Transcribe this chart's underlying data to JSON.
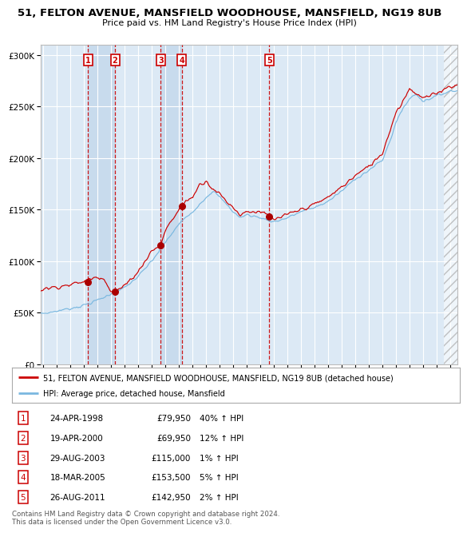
{
  "title1": "51, FELTON AVENUE, MANSFIELD WOODHOUSE, MANSFIELD, NG19 8UB",
  "title2": "Price paid vs. HM Land Registry's House Price Index (HPI)",
  "plot_bg": "#dce9f5",
  "hpi_color": "#7ab8e0",
  "price_color": "#cc0000",
  "dot_color": "#aa0000",
  "legend1": "51, FELTON AVENUE, MANSFIELD WOODHOUSE, MANSFIELD, NG19 8UB (detached house)",
  "legend2": "HPI: Average price, detached house, Mansfield",
  "footer": "Contains HM Land Registry data © Crown copyright and database right 2024.\nThis data is licensed under the Open Government Licence v3.0.",
  "sales": [
    {
      "num": 1,
      "date": "24-APR-1998",
      "price": 79950,
      "pct": "40%",
      "dir": "↑",
      "year": 1998.29
    },
    {
      "num": 2,
      "date": "19-APR-2000",
      "price": 69950,
      "pct": "12%",
      "dir": "↑",
      "year": 2000.29
    },
    {
      "num": 3,
      "date": "29-AUG-2003",
      "price": 115000,
      "pct": "1%",
      "dir": "↑",
      "year": 2003.66
    },
    {
      "num": 4,
      "date": "18-MAR-2005",
      "price": 153500,
      "pct": "5%",
      "dir": "↑",
      "year": 2005.21
    },
    {
      "num": 5,
      "date": "26-AUG-2011",
      "price": 142950,
      "pct": "2%",
      "dir": "↑",
      "year": 2011.66
    }
  ],
  "ylim": [
    0,
    310000
  ],
  "xlim_start": 1994.8,
  "xlim_end": 2025.5,
  "future_shade_start": 2024.5,
  "hpi_key_years": [
    1994.8,
    1995.5,
    1996,
    1997,
    1998,
    1999,
    2000,
    2001,
    2002,
    2003,
    2004,
    2005,
    2006,
    2007,
    2007.5,
    2008,
    2009,
    2009.5,
    2010,
    2011,
    2012,
    2013,
    2014,
    2015,
    2016,
    2017,
    2018,
    2019,
    2020,
    2020.5,
    2021,
    2021.5,
    2022,
    2022.5,
    2023,
    2023.5,
    2024,
    2024.5,
    2025
  ],
  "hpi_key_values": [
    49000,
    50000,
    51500,
    54000,
    57000,
    62000,
    68000,
    74000,
    85000,
    100000,
    118000,
    136000,
    148000,
    162000,
    168000,
    162000,
    148000,
    142000,
    145000,
    142000,
    138000,
    142000,
    148000,
    152000,
    158000,
    168000,
    180000,
    188000,
    198000,
    215000,
    235000,
    248000,
    258000,
    262000,
    255000,
    258000,
    260000,
    263000,
    265000
  ],
  "price_key_years": [
    1994.8,
    1995,
    1996,
    1997,
    1998,
    1998.5,
    1999,
    1999.5,
    2000,
    2000.5,
    2001,
    2002,
    2003,
    2003.66,
    2004,
    2005,
    2005.21,
    2005.5,
    2006,
    2006.5,
    2007,
    2007.5,
    2008,
    2008.5,
    2009,
    2009.5,
    2010,
    2011,
    2011.66,
    2012,
    2013,
    2014,
    2015,
    2016,
    2017,
    2018,
    2019,
    2020,
    2021,
    2021.5,
    2022,
    2022.5,
    2023,
    2023.5,
    2024,
    2024.5,
    2025
  ],
  "price_key_values": [
    72000,
    73000,
    75000,
    77000,
    80000,
    83000,
    85000,
    83000,
    70000,
    72000,
    76000,
    90000,
    110000,
    115000,
    130000,
    150000,
    153500,
    158000,
    162000,
    174000,
    178000,
    170000,
    165000,
    158000,
    152000,
    145000,
    148000,
    148000,
    142950,
    140000,
    145000,
    150000,
    155000,
    162000,
    172000,
    183000,
    192000,
    205000,
    245000,
    255000,
    268000,
    262000,
    258000,
    260000,
    263000,
    267000,
    270000
  ]
}
